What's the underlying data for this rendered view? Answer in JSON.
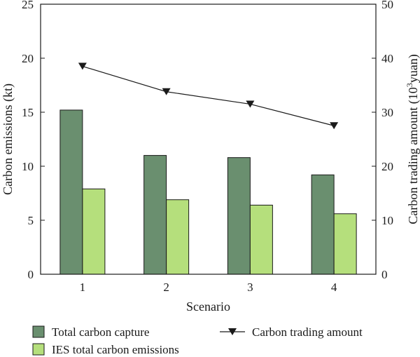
{
  "chart_data": {
    "type": "bar",
    "xlabel": "Scenario",
    "ylabel_left": "Carbon emissions (kt)",
    "ylabel_right_prefix": "Carbon trading amount (10",
    "ylabel_right_sup": "3",
    "ylabel_right_suffix": "yuan)",
    "categories": [
      "1",
      "2",
      "3",
      "4"
    ],
    "ylim_left": [
      0,
      25
    ],
    "yticks_left": [
      0,
      5,
      10,
      15,
      20,
      25
    ],
    "ylim_right": [
      0,
      50
    ],
    "yticks_right": [
      0,
      10,
      20,
      30,
      40,
      50
    ],
    "grid": false,
    "legend_position": "bottom",
    "series": [
      {
        "name": "Total carbon capture",
        "type": "bar",
        "axis": "left",
        "color": "#6a8f6f",
        "values": [
          15.2,
          11.0,
          10.8,
          9.2
        ]
      },
      {
        "name": "IES total carbon emissions",
        "type": "bar",
        "axis": "left",
        "color": "#b5df7c",
        "values": [
          7.9,
          6.9,
          6.4,
          5.6
        ]
      },
      {
        "name": "Carbon trading amount",
        "type": "line",
        "axis": "right",
        "color": "#1a1a1a",
        "marker": "triangle-down",
        "values": [
          38.5,
          33.8,
          31.5,
          27.5
        ]
      }
    ]
  }
}
